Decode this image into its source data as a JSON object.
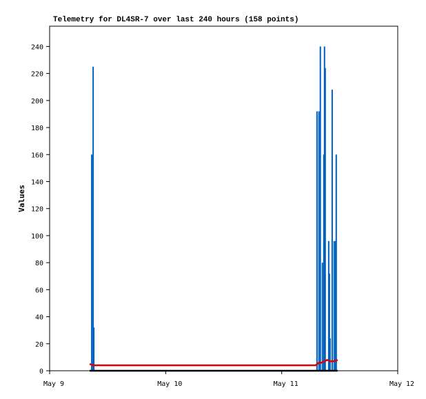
{
  "chart_data": {
    "type": "combo",
    "title": "Telemetry for DL4SR-7 over last 240 hours (158 points)",
    "y_label": "Values",
    "xlim": [
      0,
      3
    ],
    "xticks": [
      {
        "value": 0,
        "label": "May 9"
      },
      {
        "value": 1,
        "label": "May 10"
      },
      {
        "value": 2,
        "label": "May 11"
      },
      {
        "value": 3,
        "label": "May 12"
      }
    ],
    "ylim": [
      0,
      255
    ],
    "yticks": [
      0,
      20,
      40,
      60,
      80,
      100,
      120,
      140,
      160,
      180,
      200,
      220,
      240
    ],
    "series": [
      {
        "type": "bar",
        "color": "#0060c0",
        "x": [
          0.363,
          0.375,
          0.381,
          2.304,
          2.321,
          2.333,
          2.351,
          2.363,
          2.369,
          2.375,
          2.405,
          2.411,
          2.417,
          2.435,
          2.452,
          2.464,
          2.47
        ],
        "values": [
          160,
          225,
          32,
          192,
          192,
          240,
          80,
          160,
          240,
          224,
          96,
          72,
          24,
          208,
          96,
          96,
          160
        ]
      },
      {
        "type": "line",
        "color": "#e00000",
        "x": [
          0.345,
          0.375,
          2.292,
          2.321,
          2.345,
          2.393,
          2.417,
          2.452,
          2.482
        ],
        "values": [
          5,
          4,
          4,
          6,
          6,
          8,
          7,
          7,
          8
        ]
      },
      {
        "type": "line",
        "color": "#000000",
        "x": [
          0.345,
          2.482
        ],
        "values": [
          0,
          0
        ]
      }
    ]
  }
}
